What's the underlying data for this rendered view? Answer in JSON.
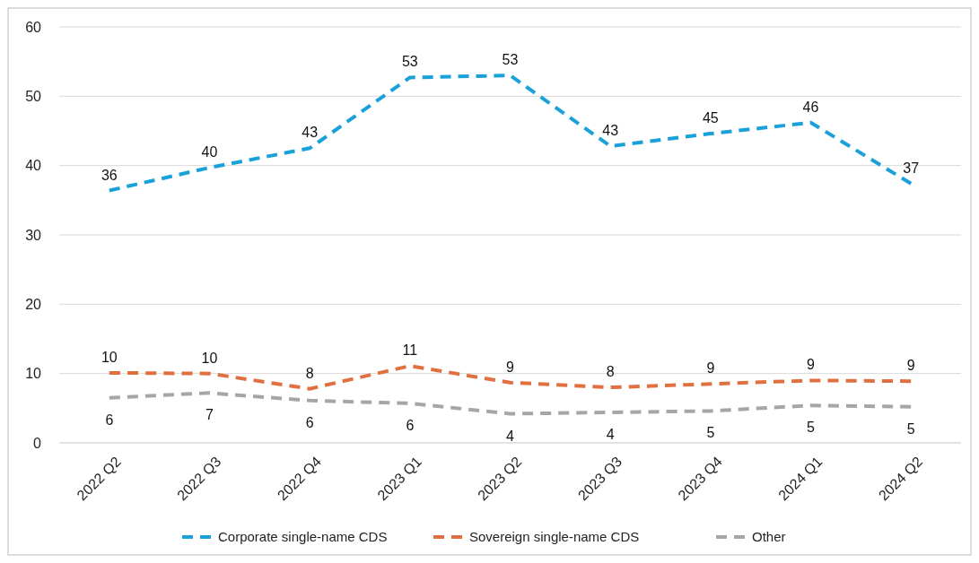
{
  "chart_data": {
    "type": "line",
    "categories": [
      "2022 Q2",
      "2022 Q3",
      "2022 Q4",
      "2023 Q1",
      "2023 Q2",
      "2023 Q3",
      "2023 Q4",
      "2024 Q1",
      "2024 Q2"
    ],
    "series": [
      {
        "name": "Corporate single-name CDS",
        "color": "#1ba1d9",
        "values": [
          36.4,
          39.7,
          42.5,
          52.7,
          53.0,
          42.8,
          44.6,
          46.2,
          37.4
        ],
        "value_labels": [
          "36",
          "40",
          "43",
          "53",
          "53",
          "43",
          "45",
          "46",
          "37"
        ]
      },
      {
        "name": "Sovereign single-name CDS",
        "color": "#e0703f",
        "values": [
          10.1,
          10.0,
          7.8,
          11.1,
          8.7,
          8.0,
          8.5,
          9.0,
          8.9
        ],
        "value_labels": [
          "10",
          "10",
          "8",
          "11",
          "9",
          "8",
          "9",
          "9",
          "9"
        ]
      },
      {
        "name": "Other",
        "color": "#a6a6a6",
        "values": [
          6.5,
          7.2,
          6.1,
          5.7,
          4.2,
          4.4,
          4.6,
          5.4,
          5.2
        ],
        "value_labels": [
          "6",
          "7",
          "6",
          "6",
          "4",
          "4",
          "5",
          "5",
          "5"
        ]
      }
    ],
    "ylim": [
      0,
      60
    ],
    "yticks": [
      0,
      10,
      20,
      30,
      40,
      50,
      60
    ],
    "grid": "y",
    "legend": "bottom",
    "line_style": "dashed",
    "marker": "none"
  }
}
